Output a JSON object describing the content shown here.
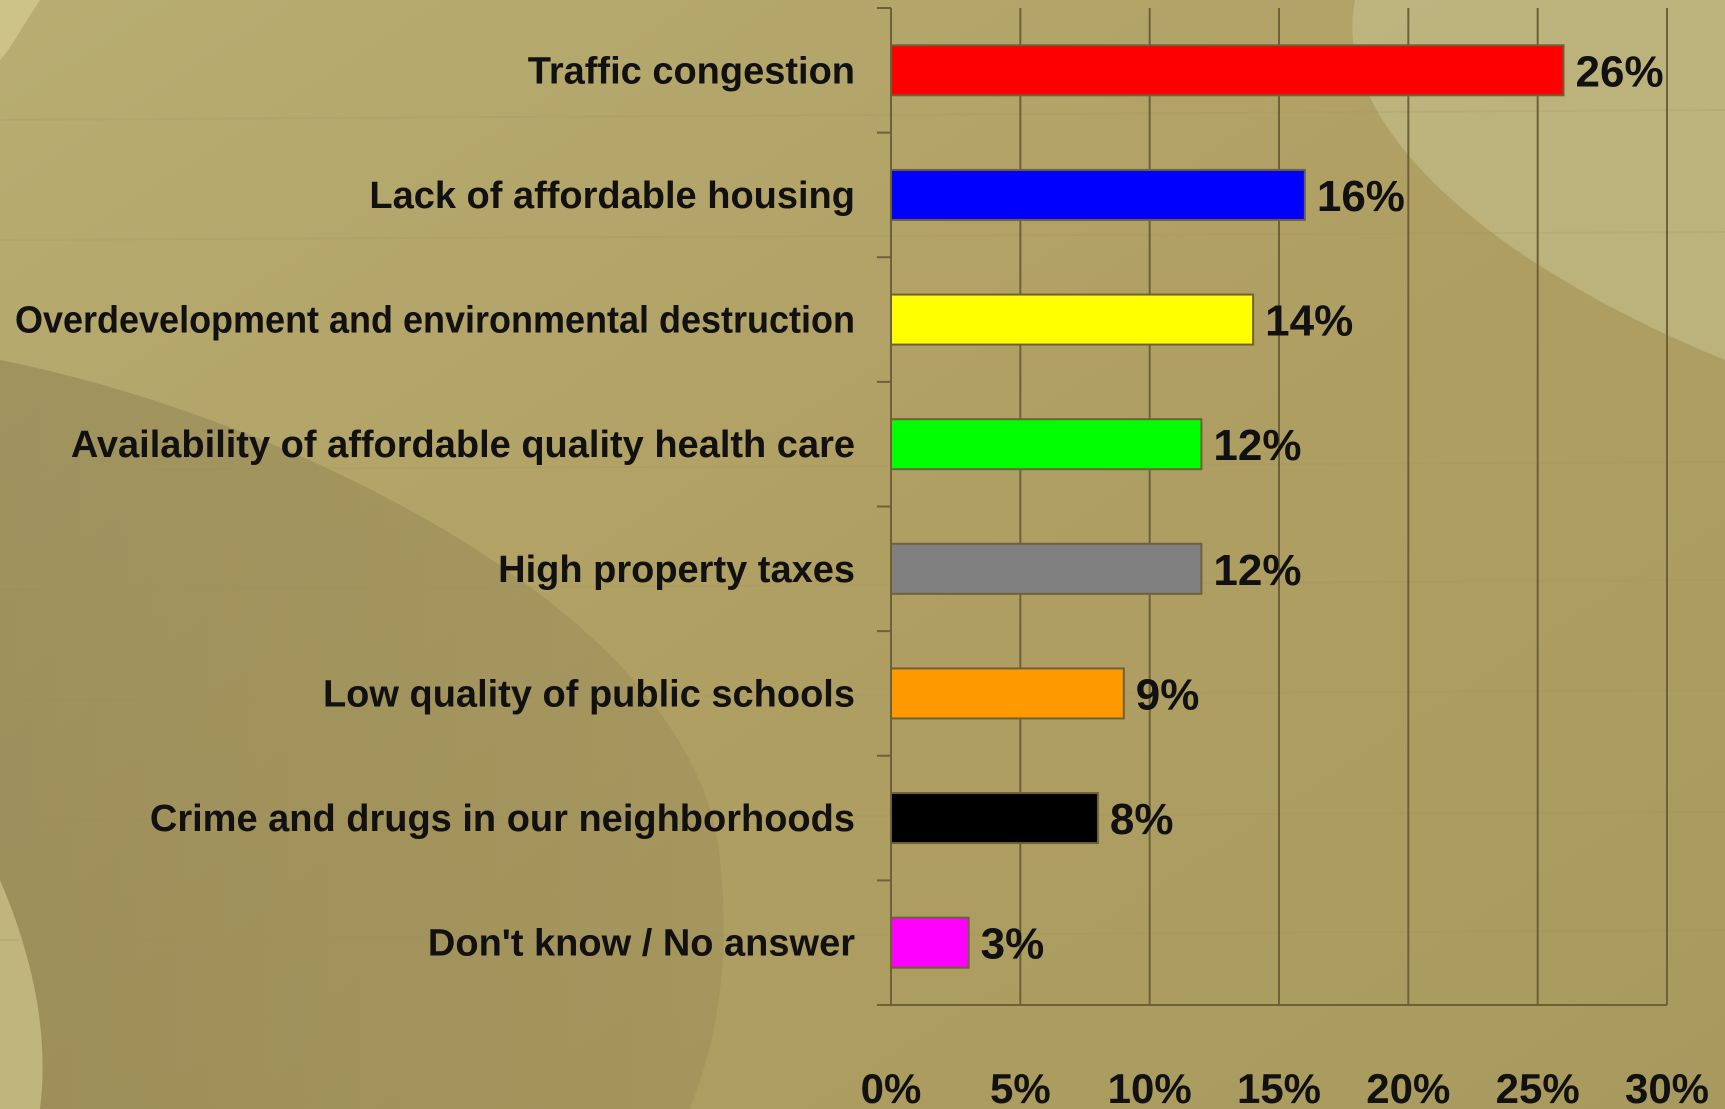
{
  "chart_data": {
    "type": "bar",
    "orientation": "horizontal",
    "categories": [
      "Traffic congestion",
      "Lack of affordable housing",
      "Overdevelopment and environmental destruction",
      "Availability of affordable quality health care",
      "High property taxes",
      "Low quality of public schools",
      "Crime and drugs in our neighborhoods",
      "Don't know / No answer"
    ],
    "values": [
      26,
      16,
      14,
      12,
      12,
      9,
      8,
      3
    ],
    "value_labels": [
      "26%",
      "16%",
      "14%",
      "12%",
      "12%",
      "9%",
      "8%",
      "3%"
    ],
    "colors": [
      "#ff0000",
      "#0000ff",
      "#ffff00",
      "#00ff00",
      "#808080",
      "#ff9900",
      "#000000",
      "#ff00ff"
    ],
    "xlim": [
      0,
      30
    ],
    "xticks": [
      0,
      5,
      10,
      15,
      20,
      25,
      30
    ],
    "xtick_labels": [
      "0%",
      "5%",
      "10%",
      "15%",
      "20%",
      "25%",
      "30%"
    ],
    "grid": true,
    "legend": "none",
    "title": "",
    "xlabel": "",
    "ylabel": ""
  },
  "theme": {
    "background": "#b5a769",
    "grid_color": "#6e6139",
    "text_color": "#111111",
    "bar_border": "#6e6139"
  }
}
